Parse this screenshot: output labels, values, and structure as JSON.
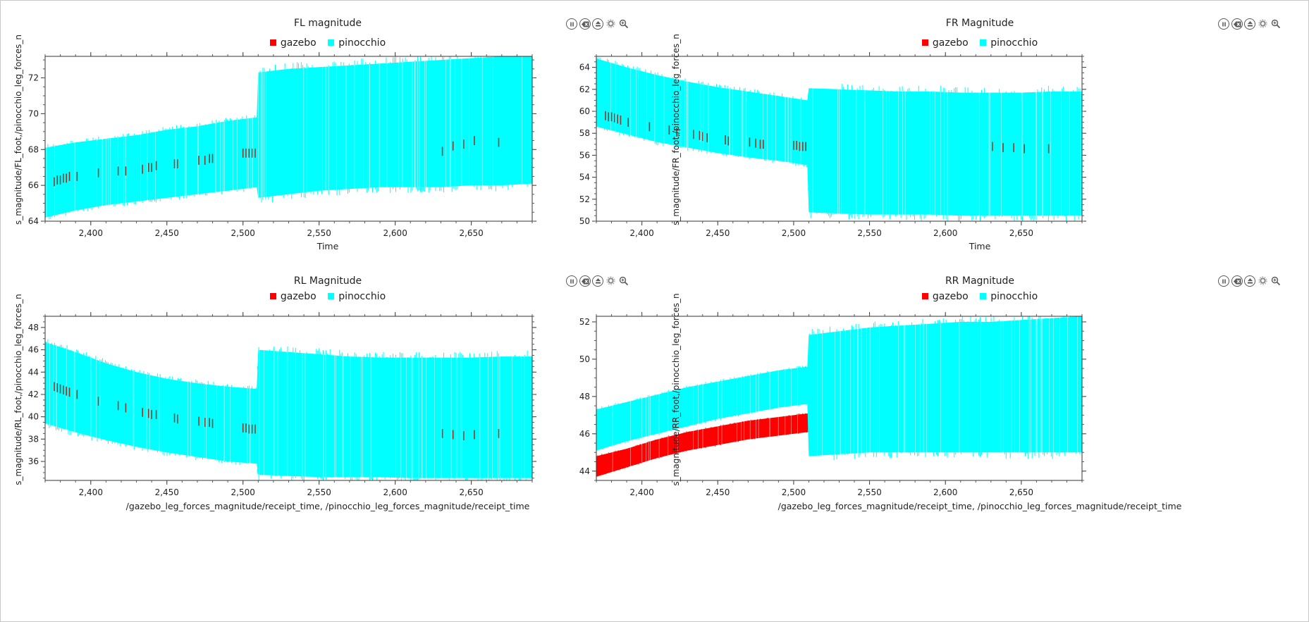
{
  "legend_colors": {
    "gazebo": "#ff0000",
    "pinocchio": "#00ffff"
  },
  "toolbar_icons": [
    "pause-icon",
    "clear-icon",
    "save-icon",
    "settings-icon",
    "zoom-icon"
  ],
  "chart_data": [
    {
      "type": "line",
      "title": "FL magnitude",
      "xlabel": "Time",
      "ylabel": "s_magnitude/FL_foot,/pinocchio_leg_forces_n",
      "xlim": [
        2370,
        2690
      ],
      "ylim": [
        64,
        73.2
      ],
      "xticks": [
        2400,
        2450,
        2500,
        2550,
        2600,
        2650
      ],
      "xtick_labels": [
        "2,400",
        "2,450",
        "2,500",
        "2,550",
        "2,600",
        "2,650"
      ],
      "yticks": [
        64,
        66,
        68,
        70,
        72
      ],
      "ytick_labels": [
        "64",
        "66",
        "68",
        "70",
        "72"
      ],
      "series": [
        {
          "name": "gazebo",
          "color": "#ff0000",
          "x": [
            2376,
            2378,
            2380,
            2382,
            2384,
            2386,
            2391,
            2405,
            2418,
            2423,
            2434,
            2438,
            2440,
            2443,
            2455,
            2457,
            2471,
            2475,
            2478,
            2480,
            2500,
            2502,
            2504,
            2506,
            2508,
            2631,
            2638,
            2645,
            2652,
            2668
          ],
          "y": [
            66.2,
            66.3,
            66.3,
            66.4,
            66.4,
            66.5,
            66.5,
            66.7,
            66.8,
            66.8,
            66.9,
            67.0,
            67.0,
            67.1,
            67.2,
            67.2,
            67.4,
            67.4,
            67.5,
            67.5,
            67.8,
            67.8,
            67.8,
            67.8,
            67.8,
            67.9,
            68.2,
            68.3,
            68.5,
            68.4
          ]
        },
        {
          "name": "pinocchio",
          "color": "#00ffff",
          "x": [
            2370,
            2390,
            2410,
            2430,
            2450,
            2470,
            2490,
            2509,
            2510,
            2530,
            2550,
            2570,
            2590,
            2610,
            2630,
            2650,
            2670,
            2690
          ],
          "y_low": [
            64.2,
            64.6,
            64.9,
            65.1,
            65.3,
            65.5,
            65.7,
            65.9,
            65.3,
            65.5,
            65.7,
            65.8,
            65.9,
            65.9,
            65.9,
            66.0,
            66.0,
            66.1
          ],
          "y_high": [
            68.1,
            68.4,
            68.6,
            68.8,
            69.1,
            69.3,
            69.6,
            69.8,
            72.3,
            72.5,
            72.6,
            72.7,
            72.8,
            72.9,
            73.0,
            73.1,
            73.2,
            73.3
          ]
        }
      ]
    },
    {
      "type": "line",
      "title": "FR Magnitude",
      "xlabel": "Time",
      "ylabel": "s_magnitude/FR_foot,/pinocchio_leg_forces_n",
      "xlim": [
        2370,
        2690
      ],
      "ylim": [
        50,
        65
      ],
      "xticks": [
        2400,
        2450,
        2500,
        2550,
        2600,
        2650
      ],
      "xtick_labels": [
        "2,400",
        "2,450",
        "2,500",
        "2,550",
        "2,600",
        "2,650"
      ],
      "yticks": [
        50,
        52,
        54,
        56,
        58,
        60,
        62,
        64
      ],
      "ytick_labels": [
        "50",
        "52",
        "54",
        "56",
        "58",
        "60",
        "62",
        "64"
      ],
      "series": [
        {
          "name": "gazebo",
          "color": "#ff0000",
          "x": [
            2376,
            2378,
            2380,
            2382,
            2384,
            2386,
            2391,
            2405,
            2418,
            2423,
            2434,
            2438,
            2440,
            2443,
            2455,
            2457,
            2471,
            2475,
            2478,
            2480,
            2500,
            2502,
            2504,
            2506,
            2508,
            2631,
            2638,
            2645,
            2652,
            2668
          ],
          "y": [
            59.6,
            59.5,
            59.5,
            59.4,
            59.3,
            59.2,
            59.0,
            58.6,
            58.3,
            58.1,
            57.9,
            57.8,
            57.7,
            57.6,
            57.4,
            57.3,
            57.2,
            57.1,
            57.0,
            57.0,
            56.9,
            56.9,
            56.8,
            56.8,
            56.8,
            56.8,
            56.7,
            56.7,
            56.6,
            56.6
          ]
        },
        {
          "name": "pinocchio",
          "color": "#00ffff",
          "x": [
            2370,
            2390,
            2410,
            2430,
            2450,
            2470,
            2490,
            2509,
            2510,
            2530,
            2550,
            2570,
            2590,
            2610,
            2630,
            2650,
            2670,
            2690
          ],
          "y_low": [
            58.6,
            57.9,
            57.2,
            56.7,
            56.2,
            55.8,
            55.5,
            55.1,
            50.8,
            50.7,
            50.6,
            50.6,
            50.6,
            50.5,
            50.5,
            50.5,
            50.5,
            50.5
          ],
          "y_high": [
            64.8,
            64.0,
            63.3,
            62.7,
            62.2,
            61.8,
            61.4,
            61.0,
            62.1,
            62.0,
            61.9,
            61.8,
            61.8,
            61.7,
            61.7,
            61.7,
            61.8,
            61.8
          ]
        }
      ]
    },
    {
      "type": "line",
      "title": "RL Magnitude",
      "xlabel": "/gazebo_leg_forces_magnitude/receipt_time, /pinocchio_leg_forces_magnitude/receipt_time",
      "ylabel": "s_magnitude/RL_foot,/pinocchio_leg_forces_n",
      "xlim": [
        2370,
        2690
      ],
      "ylim": [
        34.3,
        49
      ],
      "xticks": [
        2400,
        2450,
        2500,
        2550,
        2600,
        2650
      ],
      "xtick_labels": [
        "2,400",
        "2,450",
        "2,500",
        "2,550",
        "2,600",
        "2,650"
      ],
      "yticks": [
        36,
        38,
        40,
        42,
        44,
        46,
        48
      ],
      "ytick_labels": [
        "36",
        "38",
        "40",
        "42",
        "44",
        "46",
        "48"
      ],
      "series": [
        {
          "name": "gazebo",
          "color": "#ff0000",
          "x": [
            2376,
            2378,
            2380,
            2382,
            2384,
            2386,
            2391,
            2405,
            2418,
            2423,
            2434,
            2438,
            2440,
            2443,
            2455,
            2457,
            2471,
            2475,
            2478,
            2480,
            2500,
            2502,
            2504,
            2506,
            2508,
            2631,
            2638,
            2645,
            2652,
            2668
          ],
          "y": [
            42.7,
            42.6,
            42.5,
            42.4,
            42.3,
            42.2,
            42.0,
            41.4,
            41.0,
            40.8,
            40.4,
            40.3,
            40.2,
            40.2,
            39.9,
            39.8,
            39.6,
            39.5,
            39.5,
            39.4,
            39.0,
            39.0,
            38.9,
            38.9,
            38.9,
            38.5,
            38.4,
            38.3,
            38.4,
            38.5
          ]
        },
        {
          "name": "pinocchio",
          "color": "#00ffff",
          "x": [
            2370,
            2390,
            2410,
            2430,
            2450,
            2470,
            2490,
            2509,
            2510,
            2530,
            2550,
            2570,
            2590,
            2610,
            2630,
            2650,
            2670,
            2690
          ],
          "y_low": [
            39.4,
            38.6,
            37.9,
            37.3,
            36.8,
            36.4,
            36.0,
            35.8,
            34.8,
            34.7,
            34.6,
            34.6,
            34.6,
            34.5,
            34.5,
            34.5,
            34.5,
            34.5
          ],
          "y_high": [
            46.7,
            45.8,
            44.8,
            44.0,
            43.4,
            43.0,
            42.7,
            42.5,
            46.0,
            45.8,
            45.6,
            45.4,
            45.3,
            45.3,
            45.3,
            45.3,
            45.4,
            45.4
          ]
        }
      ]
    },
    {
      "type": "line",
      "title": "RR Magnitude",
      "xlabel": "/gazebo_leg_forces_magnitude/receipt_time, /pinocchio_leg_forces_magnitude/receipt_time",
      "ylabel": "s_magnitude/RR_foot,/pinocchio_leg_forces_n",
      "xlim": [
        2370,
        2690
      ],
      "ylim": [
        43.5,
        52.3
      ],
      "xticks": [
        2400,
        2450,
        2500,
        2550,
        2600,
        2650
      ],
      "xtick_labels": [
        "2,400",
        "2,450",
        "2,500",
        "2,550",
        "2,600",
        "2,650"
      ],
      "yticks": [
        44,
        46,
        48,
        50,
        52
      ],
      "ytick_labels": [
        "44",
        "46",
        "48",
        "50",
        "52"
      ],
      "series": [
        {
          "name": "gazebo",
          "color": "#ff0000",
          "x": [
            2370,
            2390,
            2410,
            2430,
            2450,
            2470,
            2490,
            2510
          ],
          "y_low": [
            43.7,
            44.2,
            44.7,
            45.1,
            45.4,
            45.7,
            45.9,
            46.1
          ],
          "y_high": [
            44.8,
            45.2,
            45.7,
            46.1,
            46.4,
            46.7,
            46.9,
            47.1
          ]
        },
        {
          "name": "pinocchio",
          "color": "#00ffff",
          "x": [
            2370,
            2390,
            2410,
            2430,
            2450,
            2470,
            2490,
            2509,
            2510,
            2530,
            2550,
            2570,
            2590,
            2610,
            2630,
            2650,
            2670,
            2690
          ],
          "y_low": [
            45.1,
            45.6,
            46.0,
            46.4,
            46.8,
            47.1,
            47.4,
            47.6,
            44.8,
            44.9,
            45.0,
            45.0,
            45.0,
            45.0,
            45.0,
            45.0,
            45.0,
            45.0
          ],
          "y_high": [
            47.3,
            47.7,
            48.1,
            48.5,
            48.8,
            49.1,
            49.4,
            49.6,
            51.3,
            51.5,
            51.7,
            51.8,
            51.9,
            52.0,
            52.0,
            52.1,
            52.2,
            52.3
          ]
        }
      ]
    }
  ]
}
